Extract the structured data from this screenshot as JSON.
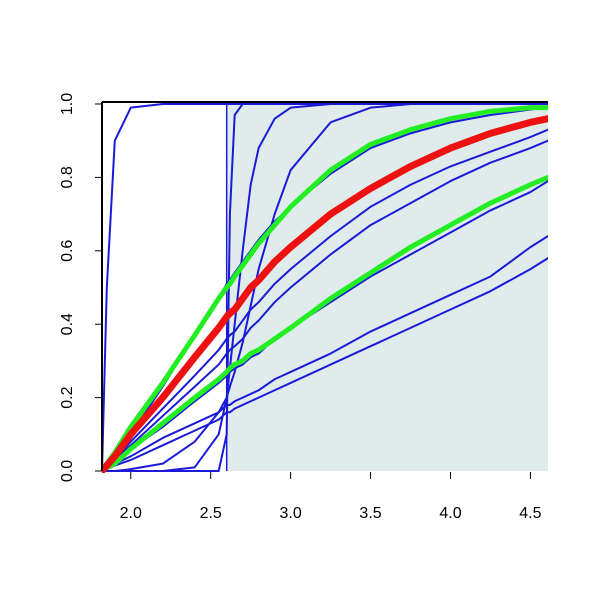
{
  "chart_data": {
    "type": "line",
    "x": [
      1.82,
      1.85,
      1.9,
      2.0,
      2.2,
      2.4,
      2.55,
      2.6,
      2.62,
      2.65,
      2.7,
      2.75,
      2.8,
      2.9,
      3.0,
      3.25,
      3.5,
      3.75,
      4.0,
      4.25,
      4.5,
      4.61
    ],
    "xlim": [
      1.82,
      4.61
    ],
    "ylim": [
      0,
      1
    ],
    "xticks": [
      {
        "value": 2,
        "label": "2.0"
      },
      2.5,
      {
        "value": 3,
        "label": "3.0"
      },
      3.5,
      {
        "value": 4,
        "label": "4.0"
      },
      4.5
    ],
    "yticks": [
      {
        "value": 0,
        "label": "0.0"
      },
      0.2,
      0.4,
      0.6,
      0.8,
      {
        "value": 1,
        "label": "1.0"
      }
    ],
    "shade_xmin": 2.6,
    "shade_color": "#e0ecec",
    "series": [
      {
        "color": "#1a1ad8",
        "values": [
          0,
          0.5,
          0.9,
          0.99,
          1,
          1,
          1,
          1,
          1,
          1,
          1,
          1,
          1,
          1,
          1,
          1,
          1,
          1,
          1,
          1,
          1,
          1
        ]
      },
      {
        "color": "#1a1ad8",
        "values": [
          0,
          0,
          0,
          0,
          0,
          0,
          0,
          0.1,
          0.7,
          0.97,
          1,
          1,
          1,
          1,
          1,
          1,
          1,
          1,
          1,
          1,
          1,
          1
        ]
      },
      {
        "color": "#1a1ad8",
        "values": [
          0,
          0,
          0,
          0,
          0,
          0.01,
          0.1,
          0.2,
          0.28,
          0.4,
          0.6,
          0.78,
          0.88,
          0.96,
          0.99,
          1,
          1,
          1,
          1,
          1,
          1,
          1
        ]
      },
      {
        "color": "#1a1ad8",
        "values": [
          0,
          0,
          0,
          0.005,
          0.02,
          0.08,
          0.16,
          0.2,
          0.23,
          0.27,
          0.35,
          0.45,
          0.55,
          0.7,
          0.82,
          0.95,
          0.99,
          1,
          1,
          1,
          1,
          1
        ]
      },
      {
        "color": "#1a1ad8",
        "values": [
          0,
          0.01,
          0.03,
          0.1,
          0.23,
          0.37,
          0.47,
          0.51,
          0.52,
          0.54,
          0.57,
          0.6,
          0.63,
          0.68,
          0.72,
          0.81,
          0.88,
          0.92,
          0.95,
          0.97,
          0.985,
          0.99
        ]
      },
      {
        "color": "#1a1ad8",
        "values": [
          0,
          0.01,
          0.03,
          0.08,
          0.17,
          0.26,
          0.33,
          0.36,
          0.37,
          0.38,
          0.41,
          0.44,
          0.46,
          0.51,
          0.55,
          0.64,
          0.72,
          0.78,
          0.83,
          0.87,
          0.91,
          0.93
        ]
      },
      {
        "color": "#1a1ad8",
        "values": [
          0,
          0.01,
          0.03,
          0.07,
          0.15,
          0.23,
          0.29,
          0.32,
          0.33,
          0.34,
          0.36,
          0.39,
          0.41,
          0.46,
          0.5,
          0.59,
          0.67,
          0.73,
          0.79,
          0.84,
          0.88,
          0.9
        ]
      },
      {
        "color": "#1a1ad8",
        "values": [
          0,
          0.01,
          0.02,
          0.06,
          0.12,
          0.19,
          0.24,
          0.26,
          0.27,
          0.28,
          0.29,
          0.31,
          0.32,
          0.36,
          0.39,
          0.46,
          0.53,
          0.59,
          0.65,
          0.71,
          0.76,
          0.79
        ]
      },
      {
        "color": "#1a1ad8",
        "values": [
          0,
          0.01,
          0.02,
          0.04,
          0.09,
          0.13,
          0.16,
          0.18,
          0.18,
          0.19,
          0.2,
          0.21,
          0.22,
          0.25,
          0.27,
          0.32,
          0.38,
          0.43,
          0.48,
          0.53,
          0.61,
          0.64
        ]
      },
      {
        "color": "#1a1ad8",
        "values": [
          0,
          0.005,
          0.015,
          0.03,
          0.07,
          0.11,
          0.14,
          0.16,
          0.16,
          0.17,
          0.18,
          0.19,
          0.2,
          0.22,
          0.24,
          0.29,
          0.34,
          0.39,
          0.44,
          0.49,
          0.55,
          0.58
        ]
      },
      {
        "color": "#22ee22",
        "values": [
          0,
          0.02,
          0.05,
          0.12,
          0.24,
          0.37,
          0.47,
          0.5,
          0.51,
          0.53,
          0.56,
          0.59,
          0.62,
          0.67,
          0.72,
          0.82,
          0.89,
          0.93,
          0.96,
          0.98,
          0.99,
          0.99
        ]
      },
      {
        "color": "#22ee22",
        "values": [
          0,
          0.01,
          0.02,
          0.06,
          0.13,
          0.2,
          0.25,
          0.27,
          0.28,
          0.29,
          0.3,
          0.32,
          0.33,
          0.36,
          0.39,
          0.47,
          0.54,
          0.61,
          0.67,
          0.73,
          0.78,
          0.8
        ]
      },
      {
        "color": "#ee1111",
        "values": [
          0,
          0.015,
          0.04,
          0.1,
          0.2,
          0.31,
          0.39,
          0.42,
          0.43,
          0.44,
          0.47,
          0.5,
          0.52,
          0.57,
          0.61,
          0.7,
          0.77,
          0.83,
          0.88,
          0.92,
          0.95,
          0.96
        ]
      }
    ]
  }
}
